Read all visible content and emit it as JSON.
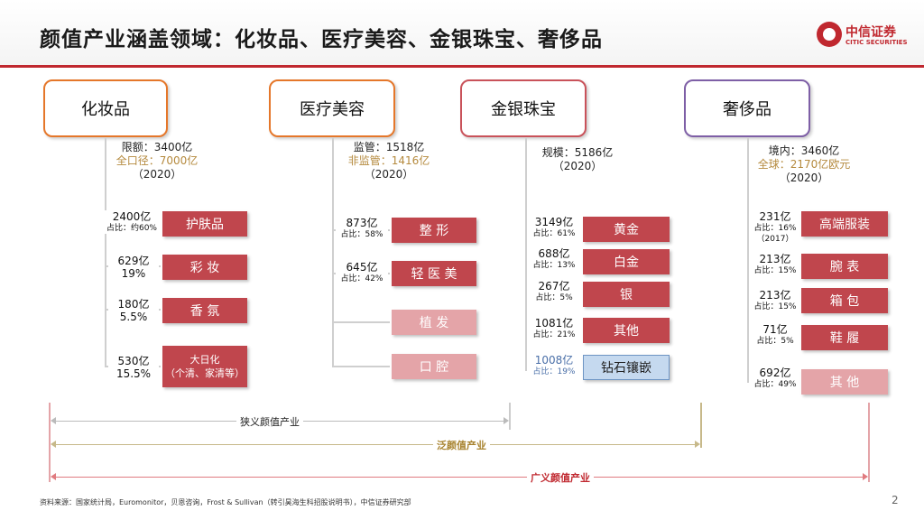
{
  "title": "颜值产业涵盖领域：化妆品、医疗美容、金银珠宝、奢侈品",
  "logo": {
    "cn": "中信证券",
    "en": "CITIC SECURITIES"
  },
  "categories": {
    "cosmetics": {
      "name": "化妆品",
      "info": [
        "限额：3400亿",
        "全口径：7000亿",
        "（2020）"
      ],
      "items": [
        {
          "value": "2400亿",
          "share": "占比：约60%",
          "label": "护肤品"
        },
        {
          "value": "629亿",
          "share": "19%",
          "label": "彩  妆"
        },
        {
          "value": "180亿",
          "share": "5.5%",
          "label": "香  氛"
        },
        {
          "value": "530亿",
          "share": "15.5%",
          "label": "大日化",
          "label2": "（个清、家清等）"
        }
      ]
    },
    "medical": {
      "name": "医疗美容",
      "info": [
        "监管：1518亿",
        "非监管：1416亿",
        "（2020）"
      ],
      "items": [
        {
          "value": "873亿",
          "share": "占比：58%",
          "label": "整  形"
        },
        {
          "value": "645亿",
          "share": "占比：42%",
          "label": "轻 医 美"
        },
        {
          "label": "植  发"
        },
        {
          "label": "口  腔"
        }
      ]
    },
    "jewelry": {
      "name": "金银珠宝",
      "info": [
        "规模：5186亿",
        "（2020）"
      ],
      "items": [
        {
          "value": "3149亿",
          "share": "占比：61%",
          "label": "黄金"
        },
        {
          "value": "688亿",
          "share": "占比：13%",
          "label": "白金"
        },
        {
          "value": "267亿",
          "share": "占比：5%",
          "label": "银"
        },
        {
          "value": "1081亿",
          "share": "占比：21%",
          "label": "其他"
        },
        {
          "value": "1008亿",
          "share": "占比：19%",
          "label": "钻石镶嵌"
        }
      ]
    },
    "luxury": {
      "name": "奢侈品",
      "info": [
        "境内：3460亿",
        "全球：2170亿欧元",
        "（2020）"
      ],
      "items": [
        {
          "value": "231亿",
          "share": "占比：16%",
          "note": "（2017）",
          "label": "高端服装"
        },
        {
          "value": "213亿",
          "share": "占比：15%",
          "label": "腕  表"
        },
        {
          "value": "213亿",
          "share": "占比：15%",
          "label": "箱  包"
        },
        {
          "value": "71亿",
          "share": "占比：5%",
          "label": "鞋  履"
        },
        {
          "value": "692亿",
          "share": "占比：49%",
          "label": "其  他"
        }
      ]
    }
  },
  "ranges": {
    "narrow": "狭义颜值产业",
    "general": "泛颜值产业",
    "broad": "广义颜值产业"
  },
  "colors": {
    "accent": "#c0282f",
    "gold": "#b58a3e",
    "sub_dark": "#c0464d",
    "sub_light": "#e4a4a8"
  },
  "source": "资料来源：国家统计局，Euromonitor，贝恩咨询，Frost & Sullivan（转引昊海生科招股说明书），中信证券研究部",
  "page_number": "2"
}
